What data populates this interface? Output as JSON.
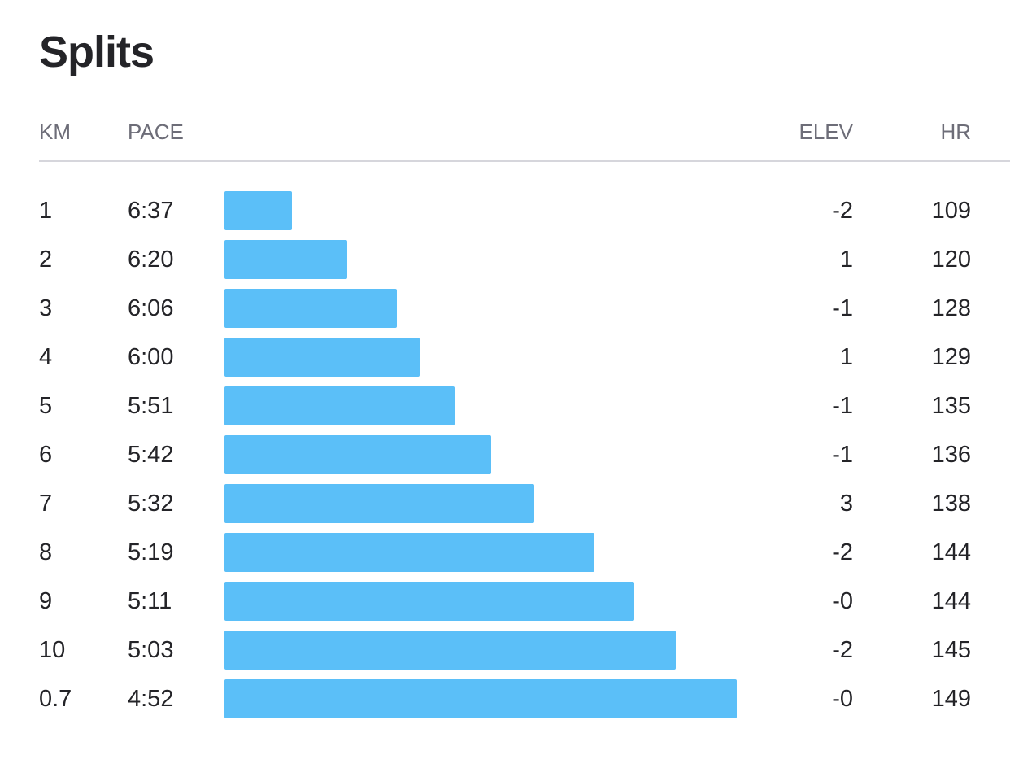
{
  "title": "Splits",
  "headers": {
    "km": "KM",
    "pace": "PACE",
    "elev": "ELEV",
    "hr": "HR"
  },
  "bar_color": "#5bbff8",
  "rows": [
    {
      "km": "1",
      "pace": "6:37",
      "elev": "-2",
      "hr": "109"
    },
    {
      "km": "2",
      "pace": "6:20",
      "elev": "1",
      "hr": "120"
    },
    {
      "km": "3",
      "pace": "6:06",
      "elev": "-1",
      "hr": "128"
    },
    {
      "km": "4",
      "pace": "6:00",
      "elev": "1",
      "hr": "129"
    },
    {
      "km": "5",
      "pace": "5:51",
      "elev": "-1",
      "hr": "135"
    },
    {
      "km": "6",
      "pace": "5:42",
      "elev": "-1",
      "hr": "136"
    },
    {
      "km": "7",
      "pace": "5:32",
      "elev": "3",
      "hr": "138"
    },
    {
      "km": "8",
      "pace": "5:19",
      "elev": "-2",
      "hr": "144"
    },
    {
      "km": "9",
      "pace": "5:11",
      "elev": "-0",
      "hr": "144"
    },
    {
      "km": "10",
      "pace": "5:03",
      "elev": "-2",
      "hr": "145"
    },
    {
      "km": "0.7",
      "pace": "4:52",
      "elev": "-0",
      "hr": "149"
    }
  ]
}
